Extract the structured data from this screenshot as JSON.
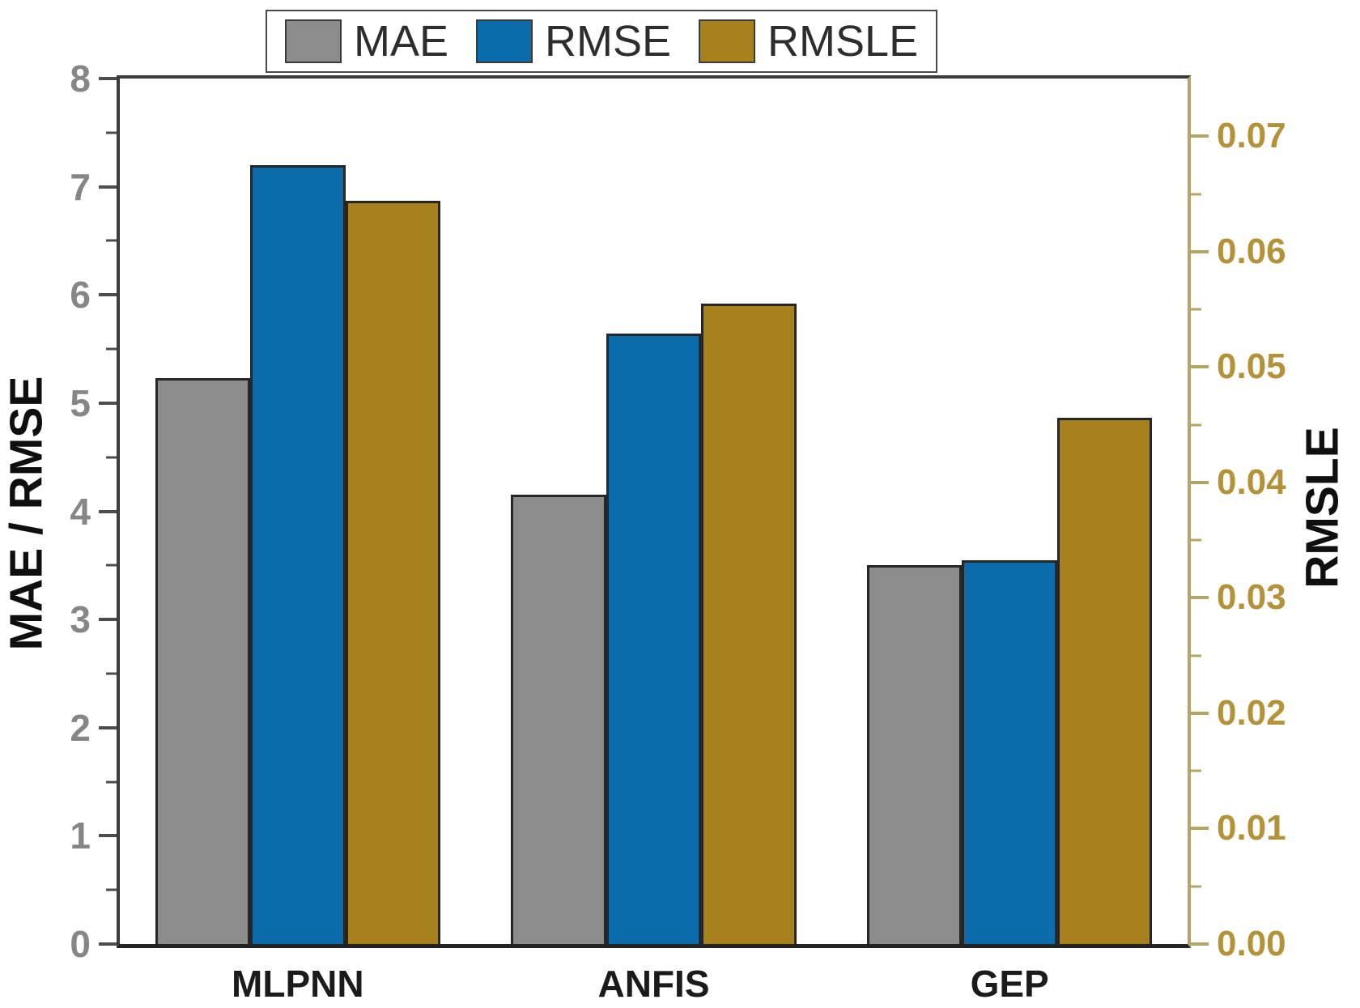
{
  "chart_data": {
    "type": "bar",
    "title": "",
    "categories": [
      "MLPNN",
      "ANFIS",
      "GEP"
    ],
    "series": [
      {
        "name": "MAE",
        "axis": "left",
        "color": "#8c8c8c",
        "values": [
          5.23,
          4.15,
          3.5
        ]
      },
      {
        "name": "RMSE",
        "axis": "left",
        "color": "#0c6baa",
        "values": [
          7.2,
          5.64,
          3.55
        ]
      },
      {
        "name": "RMSLE",
        "axis": "right",
        "color": "#a6811c",
        "values": [
          0.0644,
          0.0555,
          0.0456
        ]
      }
    ],
    "left_axis": {
      "label": "MAE / RMSE",
      "min": 0,
      "max": 8,
      "tick_step": 1,
      "minor_step": 0.5,
      "tick_labels": [
        "0",
        "1",
        "2",
        "3",
        "4",
        "5",
        "6",
        "7",
        "8"
      ],
      "axis_color": "#3b3b3b",
      "tick_color": "#4d4d4d",
      "tick_label_color": "#868686"
    },
    "right_axis": {
      "label": "RMSLE",
      "min": 0,
      "max": 0.075,
      "tick_step": 0.01,
      "minor_step": 0.005,
      "tick_labels": [
        "0.00",
        "0.01",
        "0.02",
        "0.03",
        "0.04",
        "0.05",
        "0.06",
        "0.07"
      ],
      "axis_color": "#b3a469",
      "tick_color": "#b3a469",
      "tick_label_color": "#b4923a"
    },
    "legend": {
      "position": "top-center",
      "entries": [
        "MAE",
        "RMSE",
        "RMSLE"
      ]
    },
    "grid": false,
    "background": "#ffffff"
  }
}
